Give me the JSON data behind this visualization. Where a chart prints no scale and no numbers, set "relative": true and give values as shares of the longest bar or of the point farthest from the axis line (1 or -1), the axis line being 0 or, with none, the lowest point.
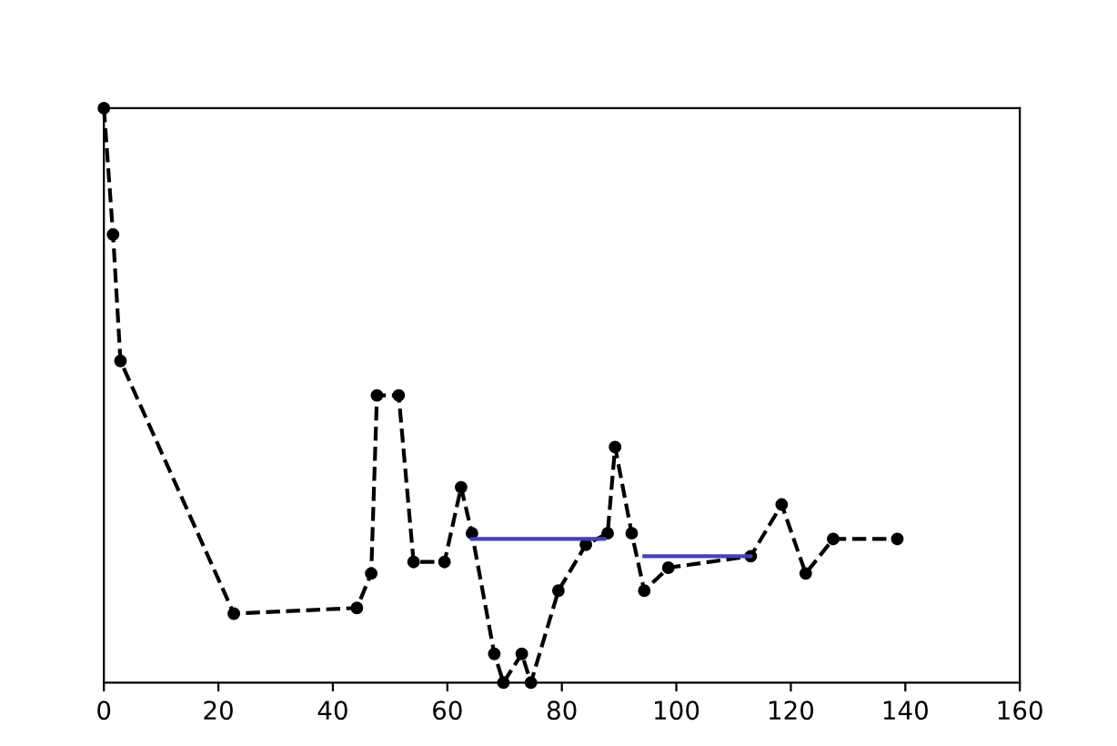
{
  "chart_data": {
    "type": "line",
    "relative": true,
    "xlim": [
      0,
      160
    ],
    "xticks": [
      0,
      20,
      40,
      60,
      80,
      100,
      120,
      140,
      160
    ],
    "grid": false,
    "legend": false,
    "series": [
      {
        "color": "#000000",
        "marker": "circle",
        "line_style": "dashed",
        "x": [
          0,
          1.6,
          2.9,
          22.7,
          44.2,
          46.7,
          47.7,
          51.5,
          54.1,
          59.5,
          62.4,
          64.3,
          68.2,
          69.8,
          73,
          74.6,
          79.4,
          84.2,
          88,
          89.3,
          92.2,
          94.4,
          98.6,
          113,
          118.4,
          122.6,
          127.4,
          138.6
        ],
        "values": [
          1.0,
          0.78,
          0.56,
          0.12,
          0.13,
          0.19,
          0.5,
          0.5,
          0.21,
          0.21,
          0.34,
          0.26,
          0.05,
          0,
          0.05,
          0,
          0.16,
          0.24,
          0.26,
          0.41,
          0.26,
          0.16,
          0.2,
          0.22,
          0.31,
          0.19,
          0.25,
          0.25
        ]
      },
      {
        "color": "#4040c0",
        "marker": "none",
        "line_style": "solid",
        "x": [
          64.3,
          87.4
        ],
        "values": [
          0.25,
          0.25
        ]
      },
      {
        "color": "#4040c0",
        "marker": "none",
        "line_style": "solid",
        "x": [
          94.4,
          113
        ],
        "values": [
          0.22,
          0.22
        ]
      }
    ]
  }
}
